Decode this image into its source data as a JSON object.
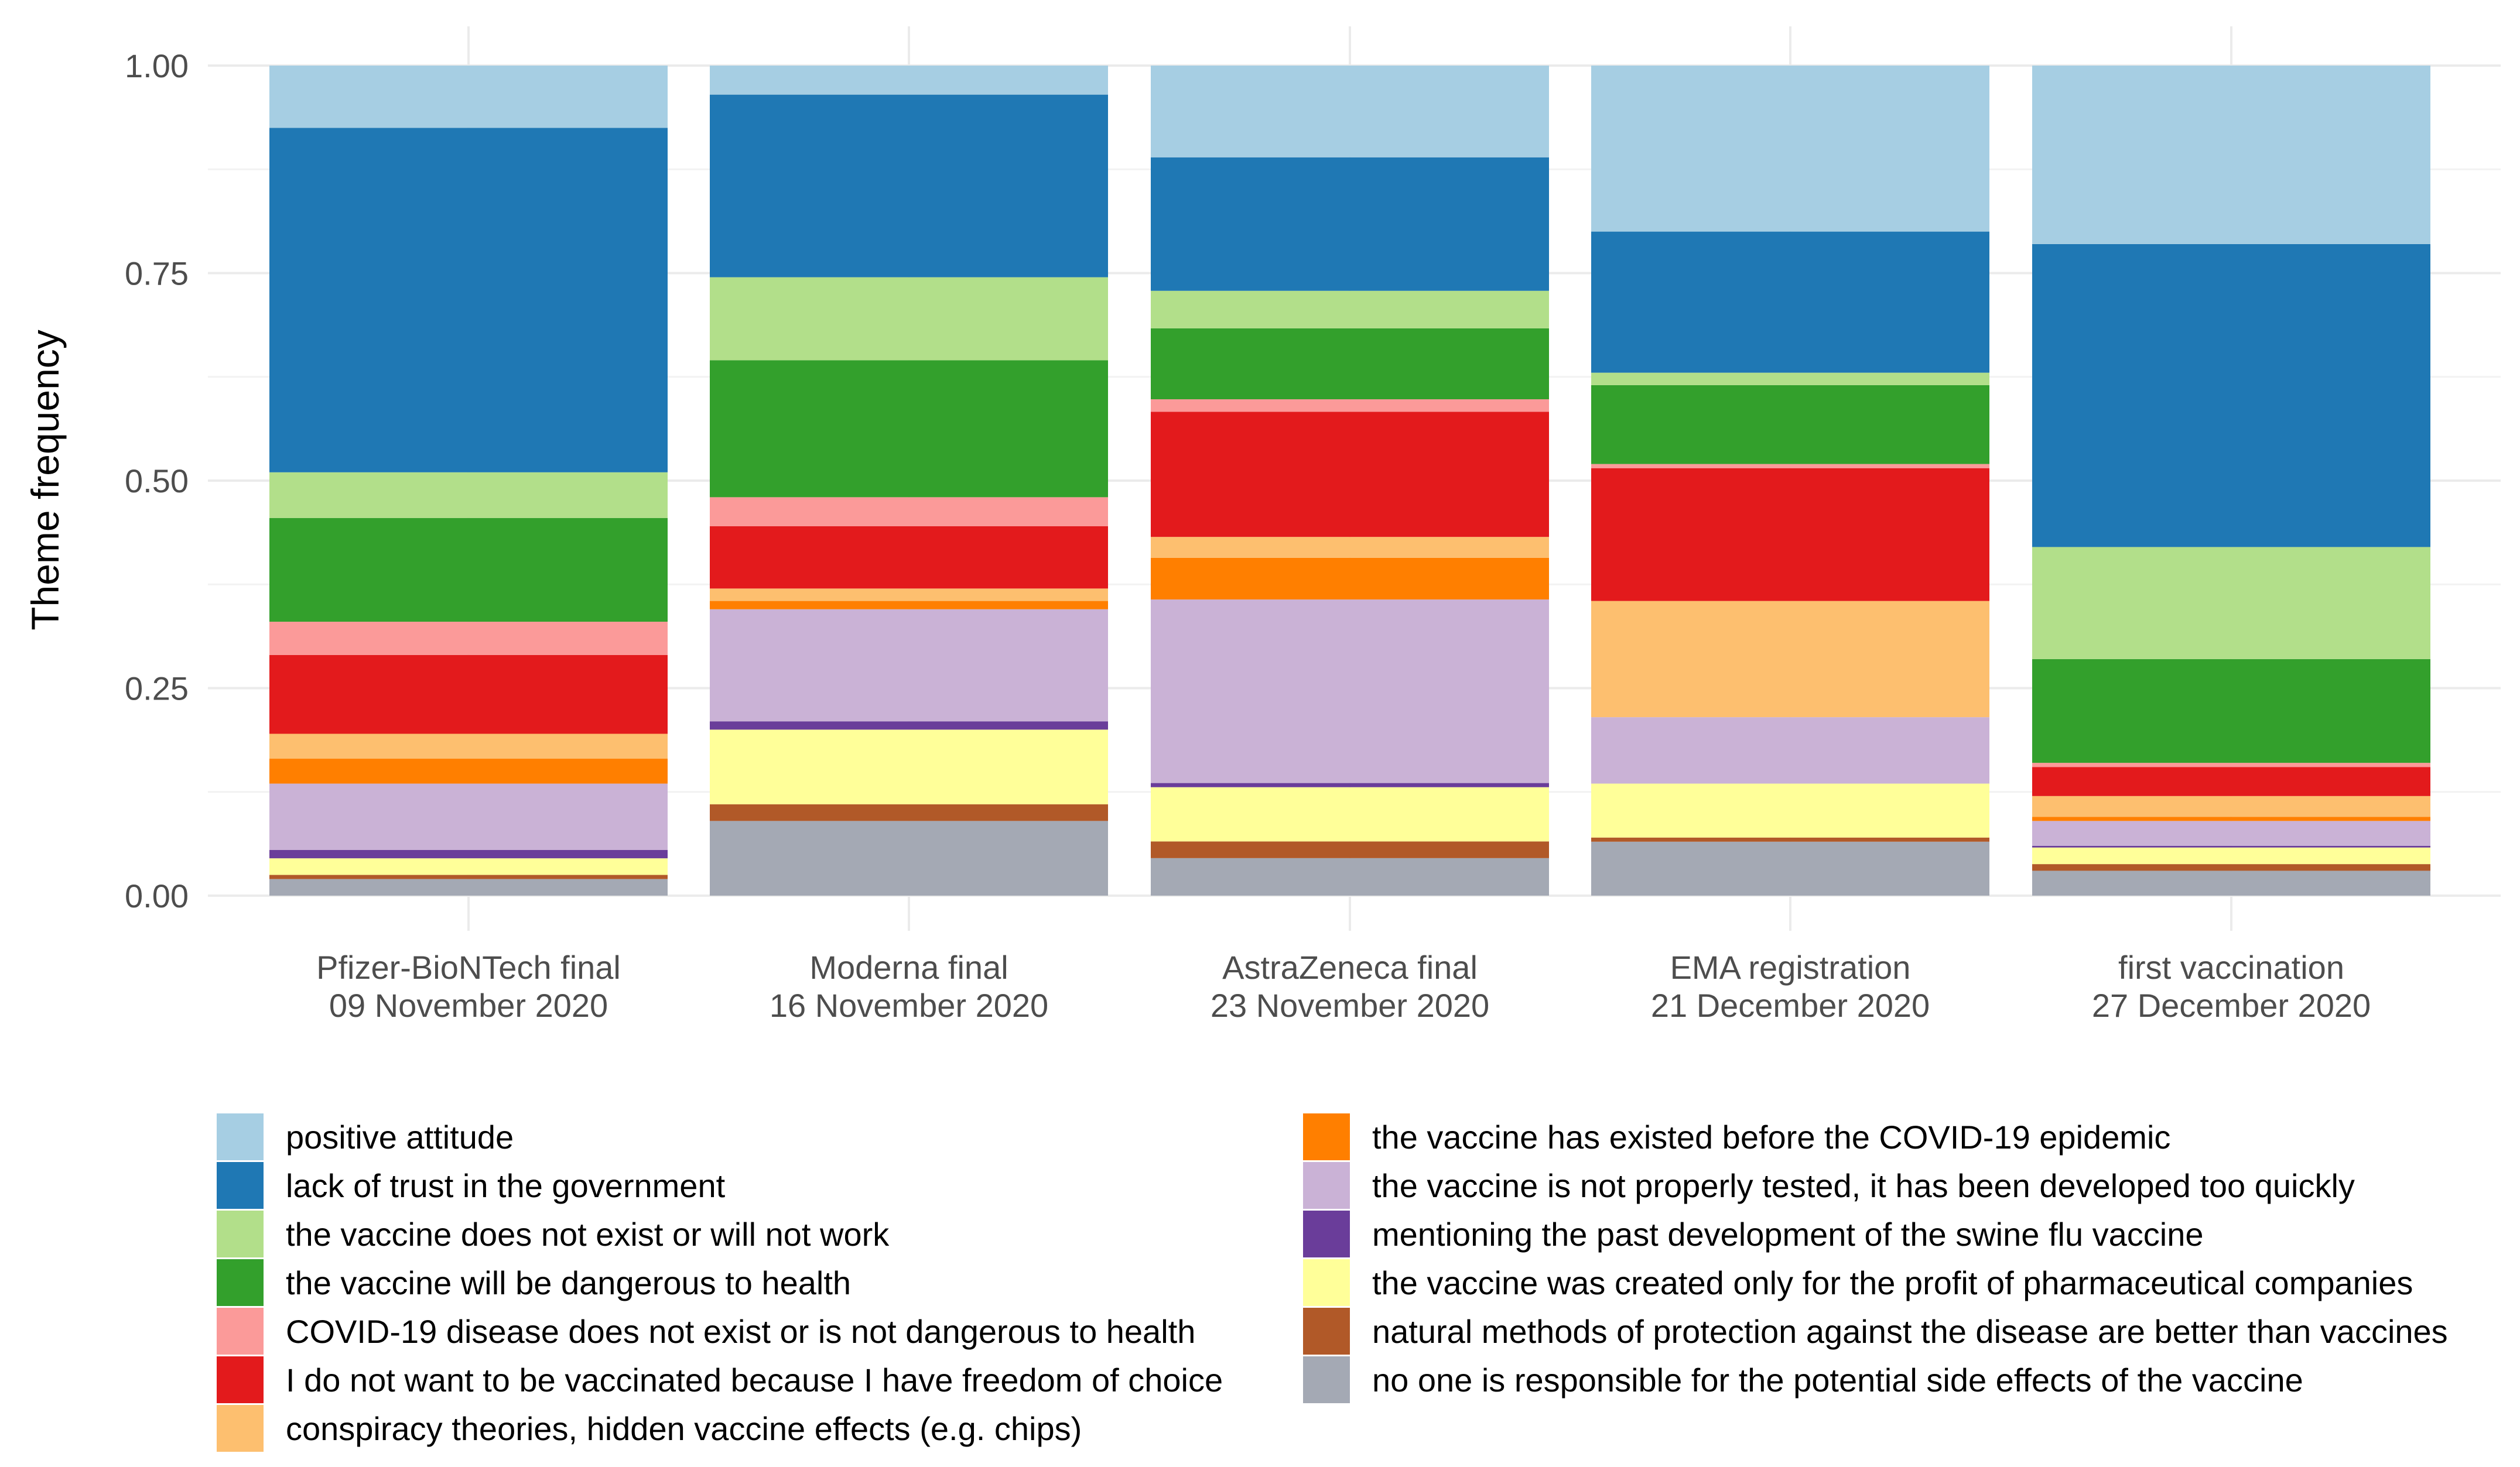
{
  "chart_data": {
    "type": "bar",
    "stacked": true,
    "title": "",
    "xlabel": "",
    "ylabel": "Theme frequency",
    "ylim": [
      0,
      1
    ],
    "yticks": [
      "0.00",
      "0.25",
      "0.50",
      "0.75",
      "1.00"
    ],
    "ytick_values": [
      0,
      0.25,
      0.5,
      0.75,
      1.0
    ],
    "categories": [
      {
        "line1": "Pfizer-BioNTech final",
        "line2": "09 November 2020"
      },
      {
        "line1": "Moderna final",
        "line2": "16 November 2020"
      },
      {
        "line1": "AstraZeneca final",
        "line2": "23 November 2020"
      },
      {
        "line1": "EMA registration",
        "line2": "21 December 2020"
      },
      {
        "line1": "first vaccination",
        "line2": "27 December 2020"
      }
    ],
    "legend_position": "bottom",
    "series": [
      {
        "name": "positive attitude",
        "color": "#A6CEE3",
        "values": [
          0.075,
          0.035,
          0.11,
          0.2,
          0.215
        ]
      },
      {
        "name": "lack of trust in the government",
        "color": "#1F78B4",
        "values": [
          0.415,
          0.22,
          0.16,
          0.17,
          0.365
        ]
      },
      {
        "name": "the vaccine does not exist or will not work",
        "color": "#B2DF8A",
        "values": [
          0.055,
          0.1,
          0.045,
          0.015,
          0.135
        ]
      },
      {
        "name": "the vaccine will be dangerous to health",
        "color": "#33A02C",
        "values": [
          0.125,
          0.165,
          0.085,
          0.095,
          0.125
        ]
      },
      {
        "name": "COVID-19 disease does not exist or is not dangerous to health",
        "color": "#FB9A99",
        "values": [
          0.04,
          0.035,
          0.015,
          0.005,
          0.005
        ]
      },
      {
        "name": "I do not want to be vaccinated because I have freedom of choice",
        "color": "#E31A1C",
        "values": [
          0.095,
          0.075,
          0.15,
          0.16,
          0.035
        ]
      },
      {
        "name": "conspiracy theories, hidden vaccine effects (e.g. chips)",
        "color": "#FDBF6F",
        "values": [
          0.03,
          0.015,
          0.025,
          0.14,
          0.025
        ]
      },
      {
        "name": "the vaccine has existed before the COVID-19 epidemic",
        "color": "#FF7F00",
        "values": [
          0.03,
          0.01,
          0.05,
          0.0,
          0.005
        ]
      },
      {
        "name": "the vaccine is not properly tested, it has been developed too quickly",
        "color": "#CAB2D6",
        "values": [
          0.08,
          0.135,
          0.22,
          0.08,
          0.03
        ]
      },
      {
        "name": "mentioning the past development of the swine flu vaccine",
        "color": "#6A3D9A",
        "values": [
          0.01,
          0.01,
          0.005,
          0.0,
          0.002
        ]
      },
      {
        "name": "the vaccine was created only for the profit of pharmaceutical companies",
        "color": "#FFFF99",
        "values": [
          0.02,
          0.09,
          0.065,
          0.065,
          0.02
        ]
      },
      {
        "name": "natural methods of protection against the disease are better than vaccines",
        "color": "#B15928",
        "values": [
          0.005,
          0.02,
          0.02,
          0.005,
          0.008
        ]
      },
      {
        "name": "no one is responsible for the potential side effects of the vaccine",
        "color": "#A4A9B4",
        "values": [
          0.02,
          0.09,
          0.045,
          0.065,
          0.03
        ]
      }
    ]
  }
}
